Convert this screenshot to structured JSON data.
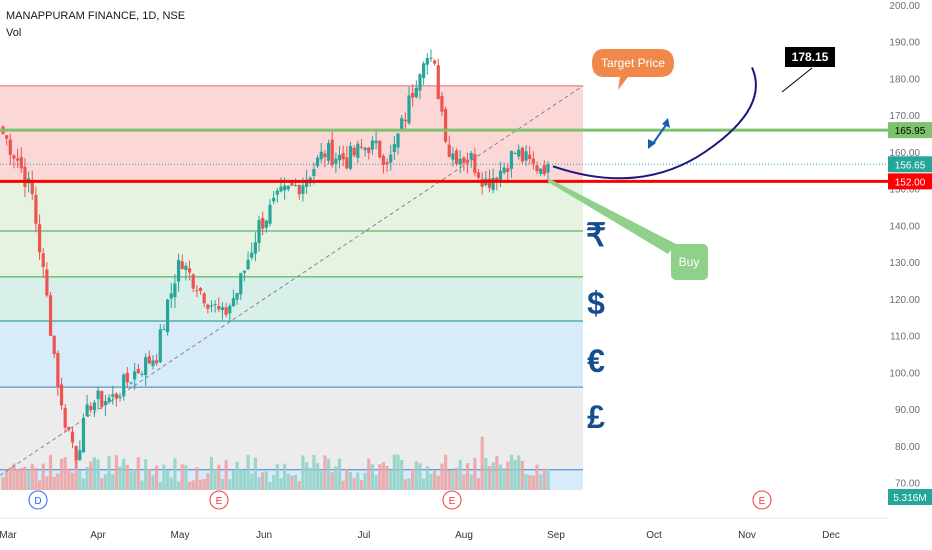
{
  "header": {
    "symbol": "MANAPPURAM FINANCE, 1D, NSE",
    "volume_label": "Vol"
  },
  "price_labels": {
    "resistance": "165.95",
    "last": "156.65",
    "support": "152.00",
    "volume": "5.316M"
  },
  "annotations": {
    "target_callout": "Target Price",
    "target_value": "178.15",
    "buy_callout": "Buy",
    "currency_symbols": [
      "₹",
      "$",
      "€",
      "£"
    ]
  },
  "events": {
    "dividend": "D",
    "earnings": "E"
  },
  "colors": {
    "up": "#26a69a",
    "down": "#ef5350",
    "support": "#ff0000",
    "resistance": "#7cc36b",
    "path": "#1a1a80",
    "callout_orange": "#f0884a",
    "callout_green": "#8fd08a",
    "currency_blue": "#164d8c"
  },
  "chart_data": {
    "type": "candlestick",
    "title": "MANAPPURAM FINANCE, 1D, NSE",
    "y_ticks": [
      200,
      190,
      180,
      170,
      160,
      150,
      140,
      130,
      120,
      110,
      100,
      90,
      80,
      70
    ],
    "ylim": [
      68,
      200
    ],
    "x_ticks": [
      "Mar",
      "Apr",
      "May",
      "Jun",
      "Jul",
      "Aug",
      "Sep",
      "Oct",
      "Nov",
      "Dec"
    ],
    "price_bounds": {
      "start": 165,
      "min": 78,
      "apr_level": 93,
      "may_high": 130,
      "jun_low": 115,
      "jul_high": 187,
      "aug_low": 148,
      "last": 156.65
    },
    "levels": {
      "resistance": 165.95,
      "support": 152.0,
      "target": 178.15
    },
    "fib_levels": [
      178,
      152,
      138.5,
      126,
      114,
      96,
      73.5
    ],
    "events": [
      {
        "type": "D",
        "month": "Mar"
      },
      {
        "type": "E",
        "month": "May"
      },
      {
        "type": "E",
        "month": "Aug"
      },
      {
        "type": "E",
        "month": "Nov"
      }
    ],
    "volume_last": "5.316M"
  }
}
